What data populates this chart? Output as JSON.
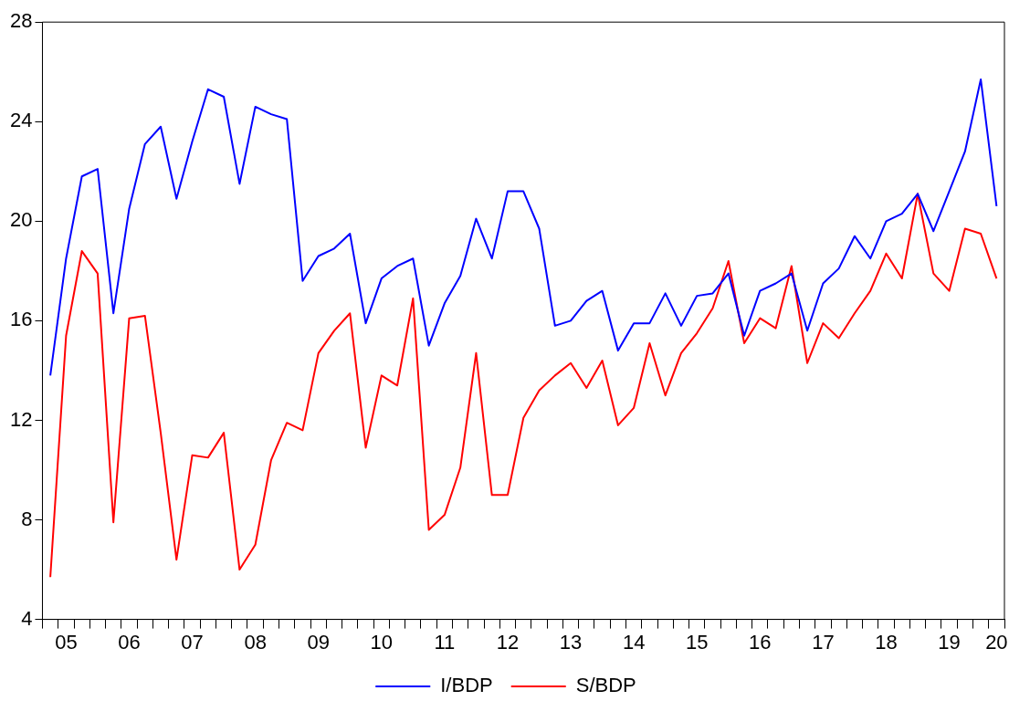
{
  "chart_data": {
    "type": "line",
    "categories": [
      null,
      "05",
      null,
      null,
      null,
      "06",
      null,
      null,
      null,
      "07",
      null,
      null,
      null,
      "08",
      null,
      null,
      null,
      "09",
      null,
      null,
      null,
      "10",
      null,
      null,
      null,
      "11",
      null,
      null,
      null,
      "12",
      null,
      null,
      null,
      "13",
      null,
      null,
      null,
      "14",
      null,
      null,
      null,
      "15",
      null,
      null,
      null,
      "16",
      null,
      null,
      null,
      "17",
      null,
      null,
      null,
      "18",
      null,
      null,
      null,
      "19",
      null,
      null,
      "20"
    ],
    "series": [
      {
        "name": "I/BDP",
        "color": "#0000ff",
        "values": [
          13.8,
          18.5,
          21.8,
          22.1,
          16.3,
          20.5,
          23.1,
          23.8,
          20.9,
          23.2,
          25.3,
          25.0,
          21.5,
          24.6,
          24.3,
          24.1,
          17.6,
          18.6,
          18.9,
          19.5,
          15.9,
          17.7,
          18.2,
          18.5,
          15.0,
          16.7,
          17.8,
          20.1,
          18.5,
          21.2,
          21.2,
          19.7,
          15.8,
          16.0,
          16.8,
          17.2,
          14.8,
          15.9,
          15.9,
          17.1,
          15.8,
          17.0,
          17.1,
          17.9,
          15.4,
          17.2,
          17.5,
          17.9,
          15.6,
          17.5,
          18.1,
          19.4,
          18.5,
          20.0,
          20.3,
          21.1,
          19.6,
          21.2,
          22.8,
          25.7,
          20.6
        ]
      },
      {
        "name": "S/BDP",
        "color": "#ff0000",
        "values": [
          5.7,
          15.4,
          18.8,
          17.9,
          7.9,
          16.1,
          16.2,
          11.5,
          6.4,
          10.6,
          10.5,
          11.5,
          6.0,
          7.0,
          10.4,
          11.9,
          11.6,
          14.7,
          15.6,
          16.3,
          10.9,
          13.8,
          13.4,
          16.9,
          7.6,
          8.2,
          10.1,
          14.7,
          9.0,
          9.0,
          12.1,
          13.2,
          13.8,
          14.3,
          13.3,
          14.4,
          11.8,
          12.5,
          15.1,
          13.0,
          14.7,
          15.5,
          16.5,
          18.4,
          15.1,
          16.1,
          15.7,
          18.2,
          14.3,
          15.9,
          15.3,
          16.3,
          17.2,
          18.7,
          17.7,
          21.1,
          17.9,
          17.2,
          19.7,
          19.5,
          17.7
        ]
      }
    ],
    "ylim": [
      4,
      28
    ],
    "yticks": [
      4,
      8,
      12,
      16,
      20,
      24,
      28
    ],
    "grid": false,
    "legend": "bottom",
    "marker": "none",
    "line_style": "solid"
  }
}
